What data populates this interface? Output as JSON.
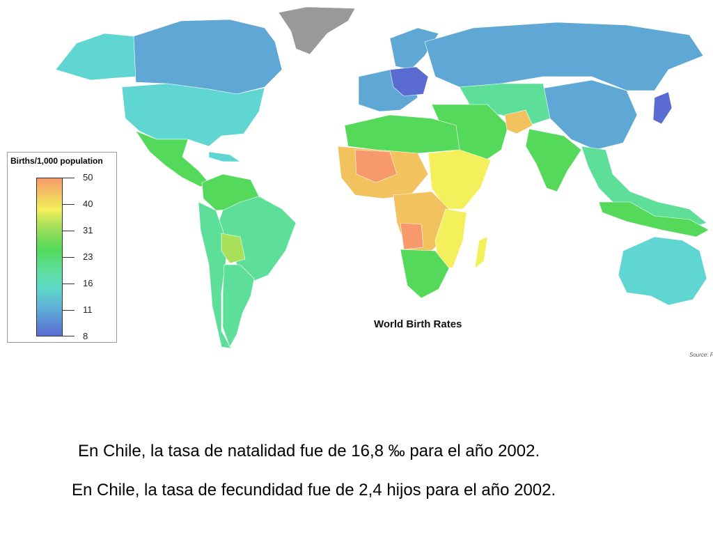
{
  "map": {
    "title": "World Birth Rates",
    "source": "Source: F",
    "colors": {
      "very_low": "#5a6cd2",
      "low": "#5fa8d6",
      "low_mid": "#5fd6d2",
      "mid": "#5ddf9a",
      "mid_high": "#54d95a",
      "high": "#f3f05b",
      "very_high": "#f2c25e",
      "highest": "#f7996a",
      "no_data": "#999999"
    }
  },
  "legend": {
    "title": "Births/1,000 population",
    "ticks": [
      "50",
      "40",
      "31",
      "23",
      "16",
      "11",
      "8"
    ]
  },
  "captions": {
    "line1": "En Chile, la tasa de natalidad fue de 16,8 ‰ para el año 2002.",
    "line2": "En Chile, la tasa de fecundidad fue de 2,4 hijos para el año 2002."
  }
}
